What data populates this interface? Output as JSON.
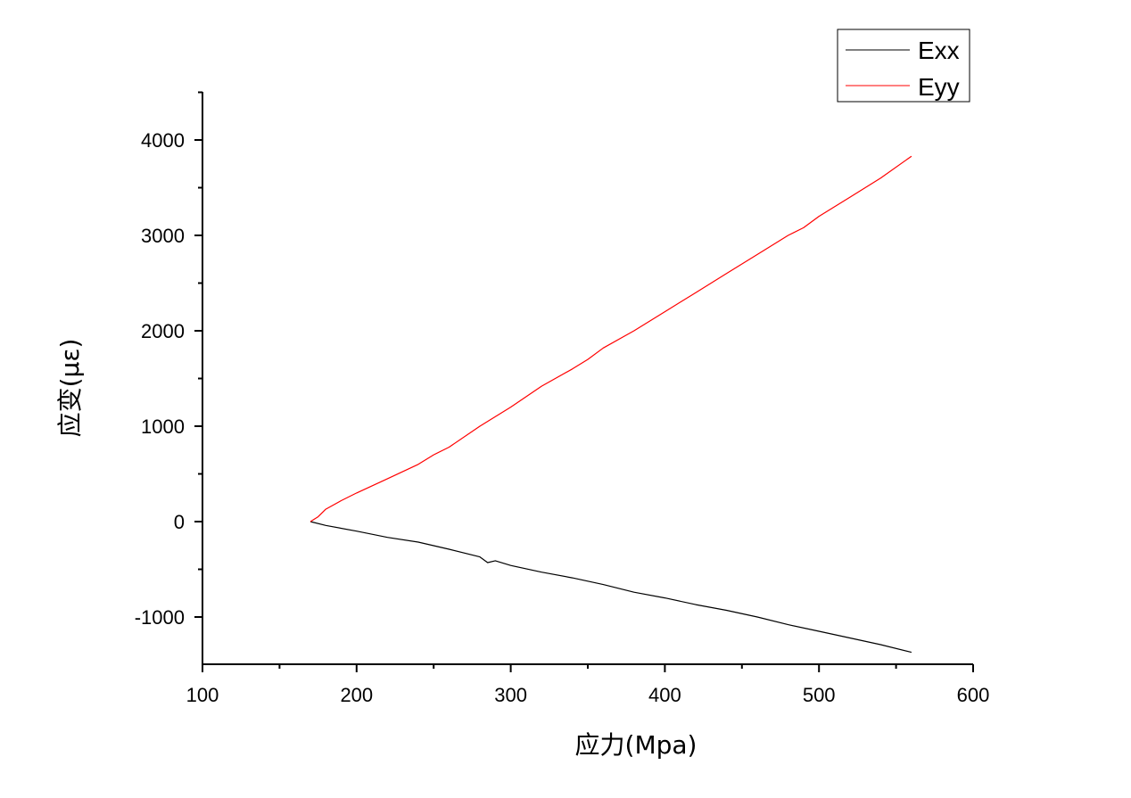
{
  "chart_data": {
    "type": "line",
    "title": "",
    "xlabel": "应力(Mpa)",
    "ylabel": "应变(με)",
    "xlim": [
      100,
      600
    ],
    "ylim": [
      -1500,
      4500
    ],
    "xticks": [
      100,
      200,
      300,
      400,
      500,
      600
    ],
    "yticks": [
      -1000,
      0,
      1000,
      2000,
      3000,
      4000
    ],
    "xtick_labels": [
      "100",
      "200",
      "300",
      "400",
      "500",
      "600"
    ],
    "ytick_labels": [
      "-1000",
      "0",
      "1000",
      "2000",
      "3000",
      "4000"
    ],
    "grid": false,
    "legend_position": "top-right",
    "series": [
      {
        "name": "Exx",
        "color": "#000000",
        "x": [
          170,
          180,
          200,
          220,
          240,
          260,
          280,
          285,
          290,
          300,
          320,
          340,
          360,
          380,
          400,
          420,
          440,
          460,
          480,
          500,
          520,
          540,
          560
        ],
        "y": [
          0,
          -40,
          -100,
          -165,
          -215,
          -290,
          -370,
          -430,
          -410,
          -460,
          -530,
          -590,
          -660,
          -740,
          -800,
          -870,
          -930,
          -1000,
          -1080,
          -1150,
          -1220,
          -1290,
          -1370
        ]
      },
      {
        "name": "Eyy",
        "color": "#ff0000",
        "x": [
          170,
          175,
          180,
          190,
          200,
          220,
          240,
          250,
          260,
          280,
          300,
          320,
          340,
          350,
          360,
          380,
          400,
          420,
          440,
          460,
          480,
          490,
          500,
          520,
          540,
          560
        ],
        "y": [
          0,
          50,
          130,
          220,
          300,
          450,
          600,
          700,
          780,
          1000,
          1200,
          1420,
          1600,
          1700,
          1820,
          2000,
          2200,
          2400,
          2600,
          2800,
          3000,
          3080,
          3200,
          3400,
          3600,
          3830
        ]
      }
    ]
  }
}
